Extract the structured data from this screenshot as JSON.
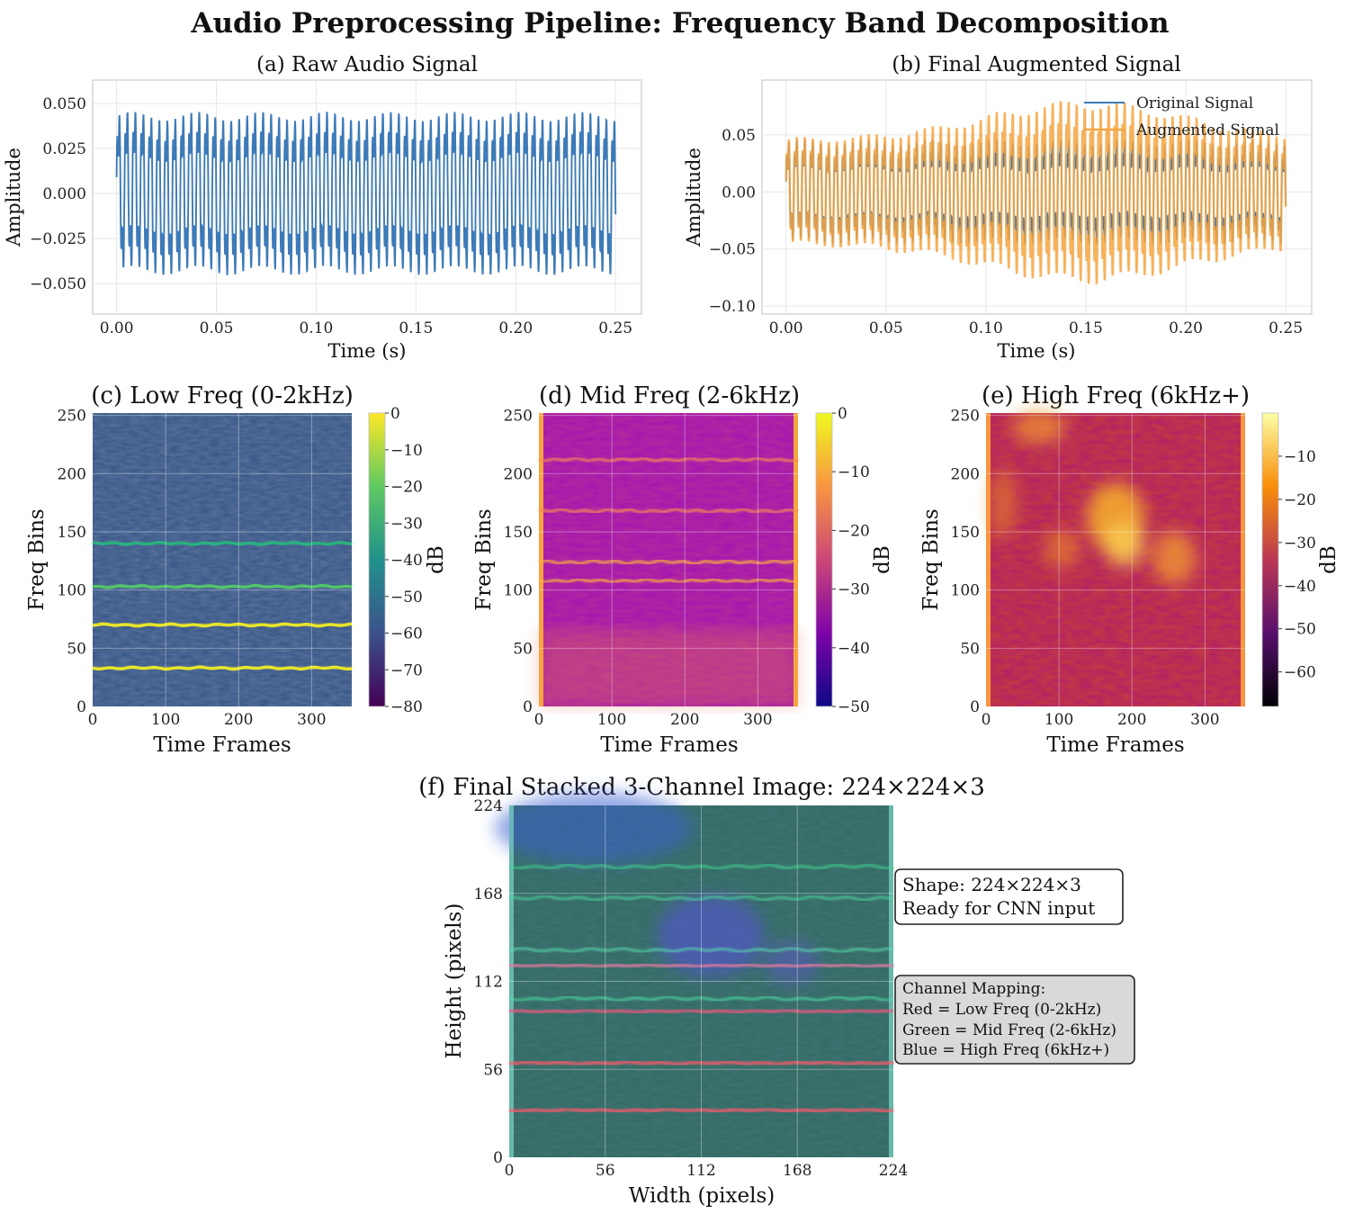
{
  "figure": {
    "title": "Audio Preprocessing Pipeline: Frequency Band Decomposition"
  },
  "chart_data": [
    {
      "id": "a",
      "type": "line",
      "title": "(a) Raw Audio Signal",
      "xlabel": "Time (s)",
      "ylabel": "Amplitude",
      "xlim": [
        -0.012,
        0.263
      ],
      "ylim": [
        -0.067,
        0.063
      ],
      "xticks": [
        0.0,
        0.05,
        0.1,
        0.15,
        0.2,
        0.25
      ],
      "xtick_labels": [
        "0.00",
        "0.05",
        "0.10",
        "0.15",
        "0.20",
        "0.25"
      ],
      "yticks": [
        -0.05,
        -0.025,
        0.0,
        0.025,
        0.05
      ],
      "ytick_labels": [
        "−0.050",
        "−0.025",
        "0.000",
        "0.025",
        "0.050"
      ],
      "grid": true,
      "series": [
        {
          "color": "#3d7ab8",
          "t_range": [
            0,
            0.25
          ],
          "dominant_freq_hz": 250,
          "harmonic_freq_hz": 750,
          "peak_amplitude": 0.052
        }
      ]
    },
    {
      "id": "b",
      "type": "line",
      "title": "(b) Final Augmented Signal",
      "xlabel": "Time (s)",
      "ylabel": "Amplitude",
      "xlim": [
        -0.012,
        0.263
      ],
      "ylim": [
        -0.107,
        0.098
      ],
      "xticks": [
        0.0,
        0.05,
        0.1,
        0.15,
        0.2,
        0.25
      ],
      "xtick_labels": [
        "0.00",
        "0.05",
        "0.10",
        "0.15",
        "0.20",
        "0.25"
      ],
      "yticks": [
        -0.1,
        -0.05,
        0.0,
        0.05
      ],
      "ytick_labels": [
        "−0.10",
        "−0.05",
        "0.00",
        "0.05"
      ],
      "grid": true,
      "legend_loc": "upper right",
      "series": [
        {
          "name": "Original Signal",
          "color": "#3d7ab8",
          "peak_amplitude": 0.052
        },
        {
          "name": "Augmented Signal",
          "color": "#f5a540",
          "peak_amplitude_start": 0.055,
          "peak_amplitude_max": 0.095,
          "peak_at_t": 0.15
        }
      ]
    },
    {
      "id": "c",
      "type": "heatmap",
      "title": "(c) Low Freq (0-2kHz)",
      "xlabel": "Time Frames",
      "ylabel": "Freq Bins",
      "xlim": [
        0,
        355
      ],
      "ylim": [
        0,
        252
      ],
      "xticks": [
        0,
        100,
        200,
        300
      ],
      "yticks": [
        0,
        50,
        100,
        150,
        200,
        250
      ],
      "colormap": "viridis",
      "colorbar_label": "dB",
      "clim": [
        -80,
        0
      ],
      "colorbar_ticks": [
        0,
        -10,
        -20,
        -30,
        -40,
        -50,
        -60,
        -70,
        -80
      ],
      "colorbar_tick_labels": [
        "0",
        "−10",
        "−20",
        "−30",
        "−40",
        "−50",
        "−60",
        "−70",
        "−80"
      ],
      "harmonic_bands": [
        {
          "bin": 33,
          "db": -8
        },
        {
          "bin": 70,
          "db": -5
        },
        {
          "bin": 103,
          "db": -30
        },
        {
          "bin": 140,
          "db": -32
        }
      ]
    },
    {
      "id": "d",
      "type": "heatmap",
      "title": "(d) Mid Freq (2-6kHz)",
      "xlabel": "Time Frames",
      "ylabel": "Freq Bins",
      "xlim": [
        0,
        355
      ],
      "ylim": [
        0,
        252
      ],
      "xticks": [
        0,
        100,
        200,
        300
      ],
      "yticks": [
        0,
        50,
        100,
        150,
        200,
        250
      ],
      "colormap": "plasma",
      "colorbar_label": "dB",
      "clim": [
        -50,
        0
      ],
      "colorbar_ticks": [
        0,
        -10,
        -20,
        -30,
        -40,
        -50
      ],
      "colorbar_tick_labels": [
        "0",
        "−10",
        "−20",
        "−30",
        "−40",
        "−50"
      ],
      "harmonic_bands": [
        {
          "bin": 108,
          "db": -18
        },
        {
          "bin": 124,
          "db": -20
        },
        {
          "bin": 168,
          "db": -26
        },
        {
          "bin": 212,
          "db": -24
        }
      ]
    },
    {
      "id": "e",
      "type": "heatmap",
      "title": "(e) High Freq (6kHz+)",
      "xlabel": "Time Frames",
      "ylabel": "Freq Bins",
      "xlim": [
        0,
        355
      ],
      "ylim": [
        0,
        252
      ],
      "xticks": [
        0,
        100,
        200,
        300
      ],
      "yticks": [
        0,
        50,
        100,
        150,
        200,
        250
      ],
      "colormap": "inferno",
      "colorbar_label": "dB",
      "clim": [
        -68,
        0
      ],
      "colorbar_ticks": [
        -10,
        -20,
        -30,
        -40,
        -50,
        -60
      ],
      "colorbar_tick_labels": [
        "−10",
        "−20",
        "−30",
        "−40",
        "−50",
        "−60"
      ]
    },
    {
      "id": "f",
      "type": "heatmap",
      "title": "(f) Final Stacked 3-Channel Image: 224×224×3",
      "xlabel": "Width (pixels)",
      "ylabel": "Height (pixels)",
      "xlim": [
        0,
        224
      ],
      "ylim": [
        0,
        224
      ],
      "xticks": [
        0,
        56,
        112,
        168,
        224
      ],
      "yticks": [
        0,
        56,
        112,
        168,
        224
      ],
      "channels": [
        "red",
        "green",
        "blue"
      ]
    }
  ],
  "annotations": {
    "shape": {
      "line1": "Shape: 224×224×3",
      "line2": "Ready for CNN input"
    },
    "mapping": {
      "title": "Channel Mapping:",
      "red": "Red = Low Freq (0-2kHz)",
      "green": "Green = Mid Freq (2-6kHz)",
      "blue": "Blue = High Freq (6kHz+)"
    }
  }
}
